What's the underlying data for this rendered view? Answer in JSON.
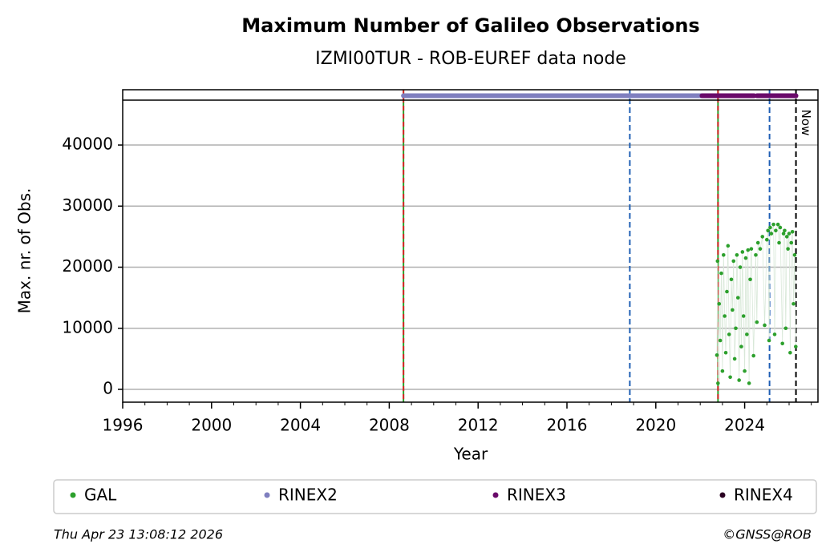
{
  "chart_data": {
    "type": "scatter",
    "title": "Maximum Number of Galileo Observations",
    "subtitle": "IZMI00TUR - ROB-EUREF data node",
    "xlabel": "Year",
    "ylabel": "Max. nr. of Obs.",
    "xlim": [
      1996,
      2027.3
    ],
    "ylim": [
      -2100,
      47350
    ],
    "xticks": [
      1996,
      2000,
      2004,
      2008,
      2012,
      2016,
      2020,
      2024
    ],
    "xminorticks": [
      1997,
      1998,
      1999,
      2001,
      2002,
      2003,
      2005,
      2006,
      2007,
      2009,
      2010,
      2011,
      2013,
      2014,
      2015,
      2017,
      2018,
      2019,
      2021,
      2022,
      2023,
      2025,
      2026,
      2027
    ],
    "yticks": [
      0,
      10000,
      20000,
      30000,
      40000
    ],
    "grid": true,
    "series": [
      {
        "name": "GAL",
        "color": "#2ca02c",
        "x": [
          2022.75,
          2022.78,
          2022.8,
          2022.85,
          2022.9,
          2022.95,
          2023.0,
          2023.05,
          2023.1,
          2023.15,
          2023.2,
          2023.25,
          2023.3,
          2023.35,
          2023.4,
          2023.45,
          2023.5,
          2023.55,
          2023.6,
          2023.65,
          2023.7,
          2023.75,
          2023.8,
          2023.85,
          2023.9,
          2023.95,
          2024.0,
          2024.05,
          2024.1,
          2024.15,
          2024.2,
          2024.25,
          2024.3,
          2024.4,
          2024.5,
          2024.55,
          2024.6,
          2024.7,
          2024.8,
          2024.9,
          2025.0,
          2025.05,
          2025.1,
          2025.15,
          2025.2,
          2025.3,
          2025.35,
          2025.4,
          2025.5,
          2025.55,
          2025.6,
          2025.7,
          2025.75,
          2025.8,
          2025.85,
          2025.9,
          2025.95,
          2026.0,
          2026.05,
          2026.1,
          2026.15,
          2026.2,
          2026.25,
          2026.3
        ],
        "values": [
          5600,
          21000,
          1000,
          14000,
          8000,
          19000,
          3000,
          22000,
          12000,
          6000,
          16000,
          23500,
          9000,
          2000,
          18000,
          13000,
          21000,
          5000,
          10000,
          22000,
          15000,
          1500,
          20000,
          7000,
          22500,
          12000,
          3000,
          21500,
          9000,
          22800,
          1000,
          18000,
          23000,
          5500,
          22000,
          11000,
          24000,
          23000,
          25000,
          10500,
          24500,
          26000,
          8000,
          26500,
          25500,
          27000,
          9000,
          26000,
          27000,
          24000,
          26500,
          7500,
          25500,
          26000,
          10000,
          25000,
          23000,
          25500,
          6000,
          24000,
          25800,
          14000,
          22000,
          7000
        ]
      },
      {
        "name": "RINEX2",
        "color": "#7f7fbf",
        "spans": [
          [
            2008.64,
            2022.08
          ]
        ]
      },
      {
        "name": "RINEX3",
        "color": "#6a0a6a",
        "spans": [
          [
            2022.08,
            2024.43
          ],
          [
            2024.55,
            2026.31
          ]
        ]
      },
      {
        "name": "RINEX4",
        "color": "#2a0022",
        "spans": []
      }
    ],
    "vlines": [
      {
        "x": 2008.64,
        "color": "#2ca02c",
        "dash_color": "#d62728"
      },
      {
        "x": 2018.83,
        "color": "#1f5fb4"
      },
      {
        "x": 2022.8,
        "color": "#2ca02c",
        "dash_color": "#d62728"
      },
      {
        "x": 2025.12,
        "color": "#1f5fb4"
      },
      {
        "x": 2026.31,
        "color": "#000000"
      }
    ],
    "annotations": [
      {
        "text": "Now",
        "x": 2026.31
      }
    ],
    "footer_left": "Thu Apr 23 13:08:12 2026",
    "footer_right": "©GNSS@ROB"
  }
}
